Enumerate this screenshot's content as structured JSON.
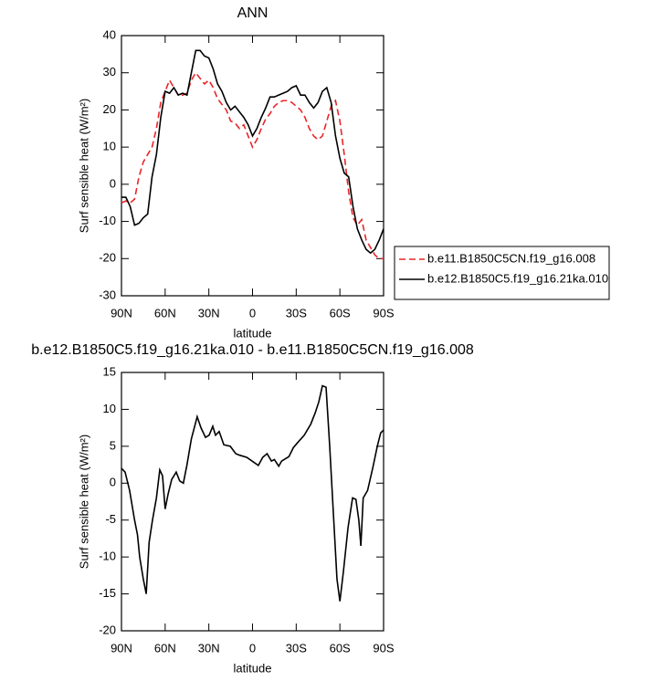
{
  "chart_data": [
    {
      "type": "line",
      "title": "ANN",
      "xlabel": "latitude",
      "ylabel": "Surf sensible heat (W/m²)",
      "x": [
        90,
        87,
        84,
        81,
        78,
        75,
        72,
        69,
        66,
        63,
        60,
        57,
        54,
        51,
        48,
        45,
        42,
        39,
        36,
        33,
        30,
        27,
        24,
        21,
        18,
        15,
        12,
        9,
        6,
        3,
        0,
        -3,
        -6,
        -9,
        -12,
        -15,
        -18,
        -21,
        -24,
        -27,
        -30,
        -33,
        -36,
        -39,
        -42,
        -45,
        -48,
        -51,
        -54,
        -57,
        -60,
        -63,
        -66,
        -69,
        -72,
        -75,
        -78,
        -81,
        -84,
        -87,
        -90
      ],
      "series": [
        {
          "name": "b.e11.B1850C5CN.f19_g16.008",
          "color": "#e8262a",
          "style": "dashed",
          "values": [
            -5,
            -4.5,
            -5,
            -4,
            2,
            6,
            8,
            10,
            15,
            22,
            25,
            28,
            26,
            24,
            24,
            24.5,
            28,
            30,
            28.5,
            27,
            28,
            26,
            23,
            21.5,
            20,
            17,
            16.5,
            15,
            16,
            13,
            10,
            12,
            15,
            17.5,
            19,
            21,
            22,
            22.5,
            22.5,
            22,
            21,
            20,
            18,
            15,
            13,
            12,
            13,
            17,
            21,
            22.5,
            17,
            8,
            -2,
            -9,
            -11,
            -9.5,
            -15,
            -17,
            -19,
            -20,
            -20
          ]
        },
        {
          "name": "b.e12.B1850C5.f19_g16.21ka.010",
          "color": "#000000",
          "style": "solid",
          "values": [
            -3.5,
            -3.5,
            -6,
            -11,
            -10.5,
            -9,
            -8,
            2,
            8,
            18,
            25,
            24.5,
            26,
            24,
            24.5,
            24,
            30,
            36,
            36,
            34.5,
            34,
            31,
            27,
            25,
            22,
            20,
            21,
            19.5,
            18,
            16,
            13,
            15,
            18,
            20.5,
            23.5,
            23.5,
            24,
            24.5,
            25,
            26,
            26.5,
            24,
            24,
            22,
            20.5,
            22,
            25,
            26,
            22,
            13,
            7,
            3,
            2,
            -6,
            -12,
            -15,
            -17.5,
            -18.5,
            -17.5,
            -15,
            -12
          ]
        }
      ],
      "xlim": [
        90,
        -90
      ],
      "ylim": [
        -30,
        40
      ],
      "xticks": [
        {
          "value": 90,
          "label": "90N"
        },
        {
          "value": 60,
          "label": "60N"
        },
        {
          "value": 30,
          "label": "30N"
        },
        0,
        {
          "value": -30,
          "label": "30S"
        },
        {
          "value": -60,
          "label": "60S"
        },
        {
          "value": -90,
          "label": "90S"
        }
      ],
      "yticks": [
        -30,
        -20,
        -10,
        0,
        10,
        20,
        30,
        40
      ],
      "legend": "right"
    },
    {
      "type": "line",
      "title": "b.e12.B1850C5.f19_g16.21ka.010 - b.e11.B1850C5CN.f19_g16.008",
      "xlabel": "latitude",
      "ylabel": "Surf sensible heat (W/m²)",
      "x": [
        90,
        87.5,
        84.4,
        81,
        79,
        77.5,
        75,
        73,
        71,
        68.7,
        66,
        63.7,
        61.8,
        60,
        58,
        55.5,
        52.4,
        50,
        47.5,
        45,
        42,
        38,
        35.4,
        32.3,
        29.8,
        27.3,
        25.4,
        22.9,
        19.7,
        15.3,
        11.5,
        9,
        4,
        0.3,
        -4,
        -7,
        -10,
        -13,
        -15,
        -18,
        -20,
        -25,
        -28,
        -31,
        -35.5,
        -40,
        -43,
        -45.5,
        -48,
        -50.5,
        -53,
        -55.5,
        -58,
        -60,
        -62.4,
        -65.6,
        -68.7,
        -71,
        -73,
        -74.4,
        -76,
        -79,
        -82.5,
        -85.7,
        -88,
        -90
      ],
      "series": [
        {
          "color": "#000000",
          "style": "solid",
          "values": [
            2,
            1.5,
            -1,
            -5,
            -7,
            -10,
            -13,
            -15,
            -8,
            -5,
            -2,
            1.8,
            1,
            -3.5,
            -1.5,
            0.5,
            1.5,
            0.3,
            0,
            2.5,
            6,
            9,
            7.5,
            6.2,
            6.5,
            7.7,
            6.5,
            7,
            5.2,
            5,
            4,
            3.8,
            3.5,
            3,
            2.4,
            3.5,
            4,
            3,
            3.2,
            2.3,
            3,
            3.6,
            4.8,
            5.5,
            6.5,
            8,
            9.5,
            11,
            13.2,
            13,
            5,
            -4,
            -13,
            -16,
            -12,
            -6,
            -2,
            -2.2,
            -5,
            -8.5,
            -2,
            -1,
            2,
            5,
            6.8,
            7.2
          ]
        }
      ],
      "xlim": [
        90,
        -90
      ],
      "ylim": [
        -20,
        15
      ],
      "xticks": [
        {
          "value": 90,
          "label": "90N"
        },
        {
          "value": 60,
          "label": "60N"
        },
        {
          "value": 30,
          "label": "30N"
        },
        0,
        {
          "value": -30,
          "label": "30S"
        },
        {
          "value": -60,
          "label": "60S"
        },
        {
          "value": -90,
          "label": "90S"
        }
      ],
      "yticks": [
        -20,
        -15,
        -10,
        -5,
        0,
        5,
        10,
        15
      ]
    }
  ]
}
